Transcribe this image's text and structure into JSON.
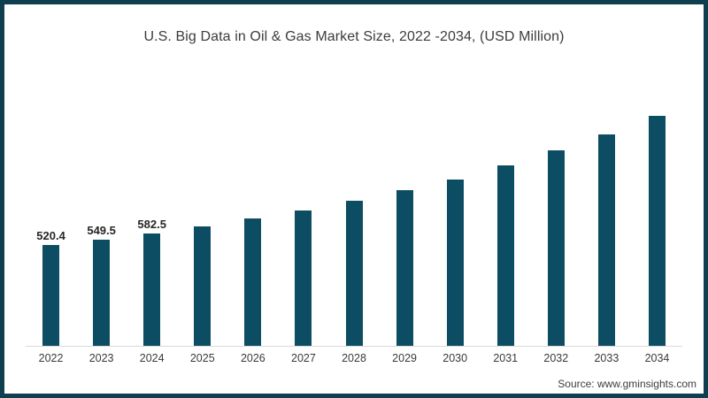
{
  "chart": {
    "title": "U.S. Big Data in Oil & Gas Market Size, 2022 -2034, (USD Million)",
    "source": "Source: www.gminsights.com"
  },
  "chart_data": {
    "type": "bar",
    "title": "U.S. Big Data in Oil & Gas Market Size, 2022 -2034, (USD Million)",
    "categories": [
      "2022",
      "2023",
      "2024",
      "2025",
      "2026",
      "2027",
      "2028",
      "2029",
      "2030",
      "2031",
      "2032",
      "2033",
      "2034"
    ],
    "values": [
      520.4,
      549.5,
      582.5,
      620,
      658,
      702,
      752,
      808,
      862,
      935,
      1010,
      1095,
      1190
    ],
    "data_labels": [
      "520.4",
      "549.5",
      "582.5",
      "",
      "",
      "",
      "",
      "",
      "",
      "",
      "",
      "",
      ""
    ],
    "xlabel": "",
    "ylabel": "",
    "ylim": [
      0,
      1200
    ],
    "grid": false,
    "legend_position": "none",
    "y_axis_shown": false,
    "bar_color": "#0c4d63"
  },
  "colors": {
    "bar": "#0c4d63",
    "frame_border": "#0f3e4e",
    "axis_line": "#d9d9d9",
    "title_text": "#3c3c3c",
    "data_label_text": "#262626",
    "axis_label_text": "#3a3a3a"
  }
}
